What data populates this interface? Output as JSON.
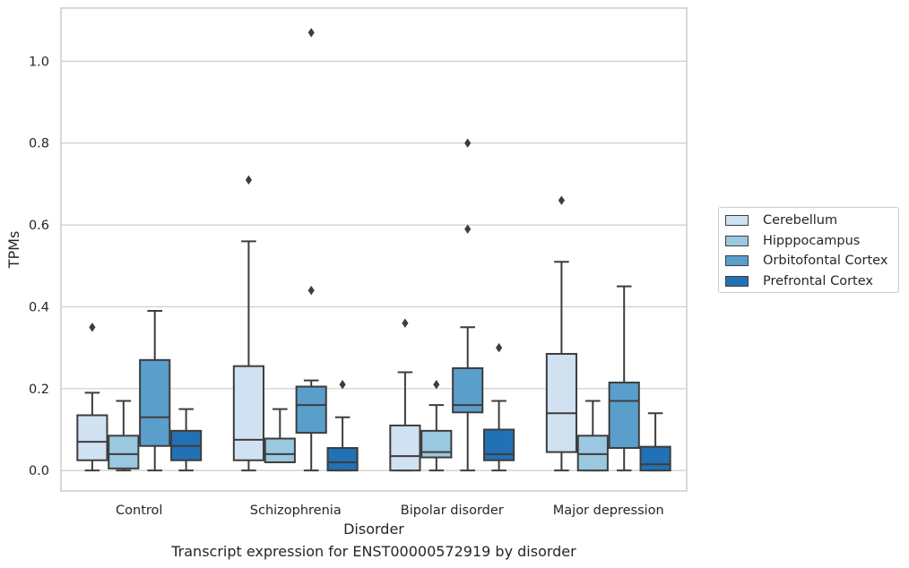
{
  "caption": "Transcript expression for ENST00000572919 by disorder",
  "chart_data": {
    "type": "box",
    "xlabel": "Disorder",
    "ylabel": "TPMs",
    "ylim": [
      -0.05,
      1.13
    ],
    "yticks": [
      0.0,
      0.2,
      0.4,
      0.6,
      0.8,
      1.0
    ],
    "ytick_labels": [
      "0.0",
      "0.2",
      "0.4",
      "0.6",
      "0.8",
      "1.0"
    ],
    "grid": "horizontal",
    "legend_position": "right, outside",
    "categories": [
      "Control",
      "Schizophrenia",
      "Bipolar disorder",
      "Major depression"
    ],
    "series": [
      {
        "name": "Cerebellum",
        "color": "#d0e1f2",
        "boxes": [
          {
            "min": 0.0,
            "q1": 0.025,
            "median": 0.07,
            "q3": 0.135,
            "max": 0.19,
            "outliers": [
              0.35
            ]
          },
          {
            "min": 0.0,
            "q1": 0.025,
            "median": 0.075,
            "q3": 0.255,
            "max": 0.56,
            "outliers": [
              0.71
            ]
          },
          {
            "min": 0.0,
            "q1": 0.0,
            "median": 0.035,
            "q3": 0.11,
            "max": 0.24,
            "outliers": [
              0.36
            ]
          },
          {
            "min": 0.0,
            "q1": 0.045,
            "median": 0.14,
            "q3": 0.285,
            "max": 0.51,
            "outliers": [
              0.66
            ]
          }
        ]
      },
      {
        "name": "Hipppocampus",
        "color": "#9ac8e0",
        "boxes": [
          {
            "min": 0.0,
            "q1": 0.005,
            "median": 0.04,
            "q3": 0.085,
            "max": 0.17,
            "outliers": []
          },
          {
            "min": 0.02,
            "q1": 0.02,
            "median": 0.04,
            "q3": 0.078,
            "max": 0.15,
            "outliers": []
          },
          {
            "min": 0.0,
            "q1": 0.032,
            "median": 0.045,
            "q3": 0.097,
            "max": 0.16,
            "outliers": [
              0.21
            ]
          },
          {
            "min": 0.0,
            "q1": 0.0,
            "median": 0.04,
            "q3": 0.085,
            "max": 0.17,
            "outliers": []
          }
        ]
      },
      {
        "name": "Orbitofontal Cortex",
        "color": "#5a9ecc",
        "boxes": [
          {
            "min": 0.0,
            "q1": 0.06,
            "median": 0.13,
            "q3": 0.27,
            "max": 0.39,
            "outliers": []
          },
          {
            "min": 0.0,
            "q1": 0.092,
            "median": 0.16,
            "q3": 0.205,
            "max": 0.22,
            "outliers": [
              0.44,
              1.07
            ]
          },
          {
            "min": 0.0,
            "q1": 0.142,
            "median": 0.16,
            "q3": 0.25,
            "max": 0.35,
            "outliers": [
              0.59,
              0.8
            ]
          },
          {
            "min": 0.0,
            "q1": 0.055,
            "median": 0.17,
            "q3": 0.215,
            "max": 0.45,
            "outliers": []
          }
        ]
      },
      {
        "name": "Prefrontal Cortex",
        "color": "#2271b4",
        "boxes": [
          {
            "min": 0.0,
            "q1": 0.025,
            "median": 0.06,
            "q3": 0.097,
            "max": 0.15,
            "outliers": []
          },
          {
            "min": 0.0,
            "q1": 0.0,
            "median": 0.02,
            "q3": 0.055,
            "max": 0.13,
            "outliers": [
              0.21
            ]
          },
          {
            "min": 0.0,
            "q1": 0.025,
            "median": 0.04,
            "q3": 0.1,
            "max": 0.17,
            "outliers": [
              0.3
            ]
          },
          {
            "min": 0.0,
            "q1": 0.0,
            "median": 0.015,
            "q3": 0.058,
            "max": 0.14,
            "outliers": []
          }
        ]
      }
    ]
  }
}
